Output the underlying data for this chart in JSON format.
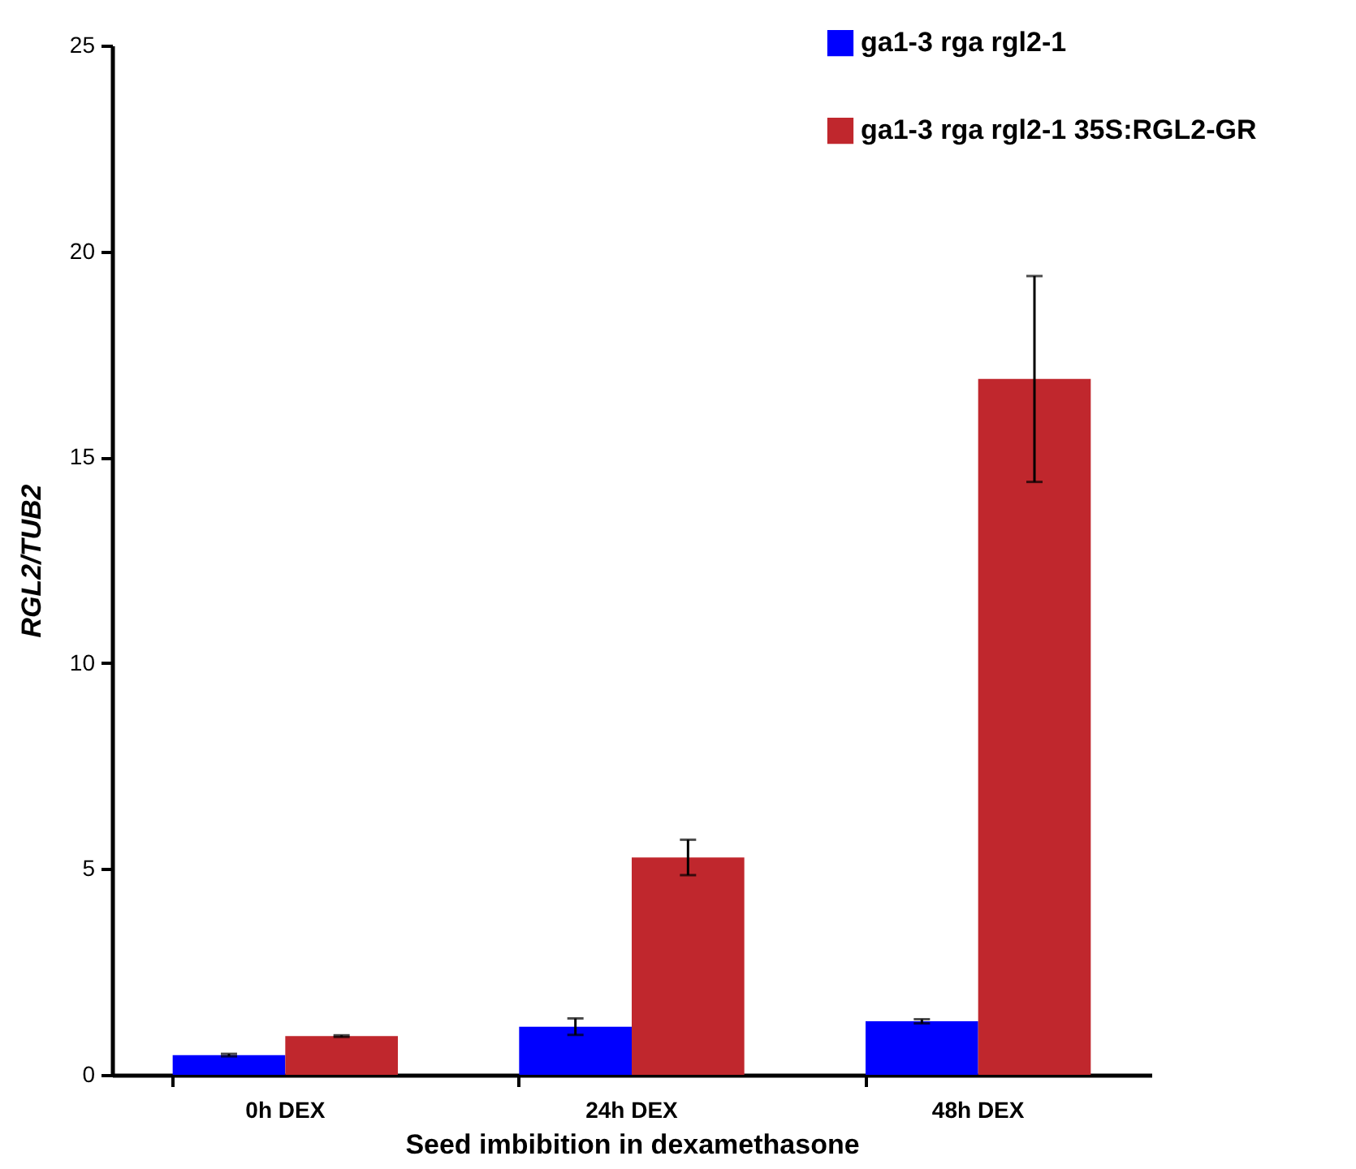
{
  "chart_data": {
    "type": "bar",
    "xlabel": "Seed imbibition in dexamethasone",
    "ylabel": "RGL2/TUB2",
    "categories": [
      "0h DEX",
      "24h DEX",
      "48h DEX"
    ],
    "series": [
      {
        "name": "ga1-3 rga rgl2-1",
        "color": "#0000ff",
        "values": [
          0.48,
          1.17,
          1.3
        ],
        "errors": [
          0.03,
          0.2,
          0.05
        ]
      },
      {
        "name": "ga1-3 rga rgl2-1 35S:RGL2-GR",
        "color": "#c0272d",
        "values": [
          0.94,
          5.28,
          16.9
        ],
        "errors": [
          0.02,
          0.43,
          2.5
        ]
      }
    ],
    "ylim": [
      0,
      25
    ],
    "yticks": [
      0,
      5,
      10,
      15,
      20,
      25
    ],
    "grid": false,
    "legend": "top right"
  }
}
